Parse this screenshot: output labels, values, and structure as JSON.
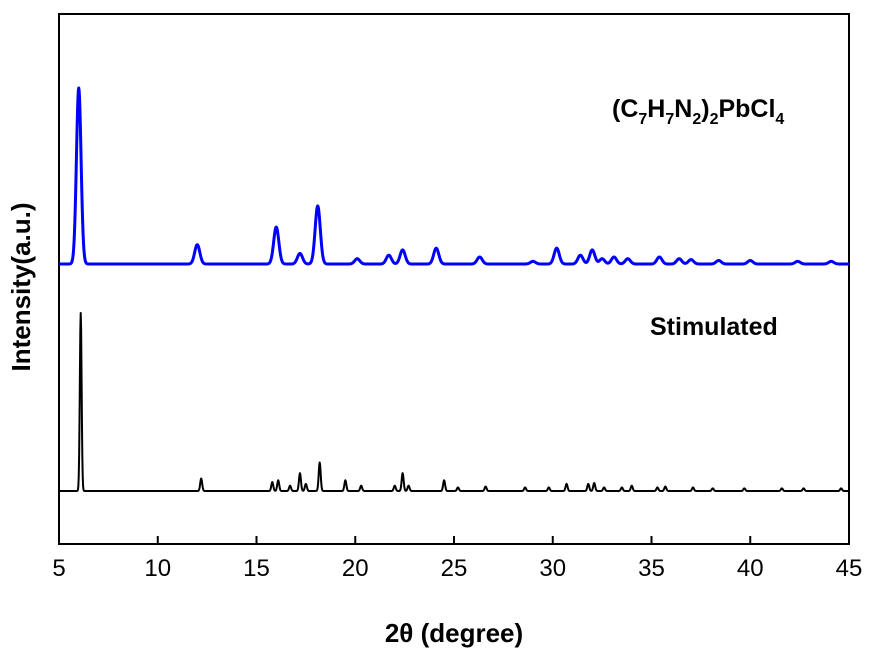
{
  "chart_data": {
    "type": "line",
    "title": "",
    "xlabel": "2θ (degree)",
    "ylabel": "Intensity(a.u.)",
    "xlim": [
      5,
      45
    ],
    "x_ticks": [
      5,
      10,
      15,
      20,
      25,
      30,
      35,
      40,
      45
    ],
    "y_ticks_shown": false,
    "grid": false,
    "legend": "none",
    "annotations": {
      "top_label_parts": [
        "(C",
        "7",
        "H",
        "7",
        "N",
        "2",
        ")",
        "2",
        "PbCl",
        "4"
      ],
      "bottom_label": "Stimulated"
    },
    "series": [
      {
        "color": "#0000ff",
        "baseline": 0.0,
        "peaks": [
          {
            "x": 6.0,
            "h": 1.0
          },
          {
            "x": 12.0,
            "h": 0.11
          },
          {
            "x": 16.0,
            "h": 0.21
          },
          {
            "x": 17.2,
            "h": 0.06
          },
          {
            "x": 18.1,
            "h": 0.33
          },
          {
            "x": 20.1,
            "h": 0.03
          },
          {
            "x": 21.7,
            "h": 0.05
          },
          {
            "x": 22.4,
            "h": 0.08
          },
          {
            "x": 24.1,
            "h": 0.09
          },
          {
            "x": 26.3,
            "h": 0.04
          },
          {
            "x": 29.0,
            "h": 0.015
          },
          {
            "x": 30.2,
            "h": 0.09
          },
          {
            "x": 31.4,
            "h": 0.05
          },
          {
            "x": 32.0,
            "h": 0.08
          },
          {
            "x": 32.5,
            "h": 0.03
          },
          {
            "x": 33.1,
            "h": 0.04
          },
          {
            "x": 33.8,
            "h": 0.03
          },
          {
            "x": 35.4,
            "h": 0.04
          },
          {
            "x": 36.4,
            "h": 0.03
          },
          {
            "x": 37.0,
            "h": 0.025
          },
          {
            "x": 38.4,
            "h": 0.02
          },
          {
            "x": 40.0,
            "h": 0.02
          },
          {
            "x": 42.4,
            "h": 0.015
          },
          {
            "x": 44.1,
            "h": 0.015
          }
        ]
      },
      {
        "color": "#000000",
        "baseline": 0.0,
        "peaks": [
          {
            "x": 6.1,
            "h": 1.0
          },
          {
            "x": 12.2,
            "h": 0.07
          },
          {
            "x": 15.8,
            "h": 0.05
          },
          {
            "x": 16.1,
            "h": 0.06
          },
          {
            "x": 16.7,
            "h": 0.03
          },
          {
            "x": 17.2,
            "h": 0.1
          },
          {
            "x": 17.5,
            "h": 0.04
          },
          {
            "x": 18.2,
            "h": 0.16
          },
          {
            "x": 19.5,
            "h": 0.06
          },
          {
            "x": 20.3,
            "h": 0.03
          },
          {
            "x": 22.0,
            "h": 0.03
          },
          {
            "x": 22.4,
            "h": 0.1
          },
          {
            "x": 22.7,
            "h": 0.03
          },
          {
            "x": 24.5,
            "h": 0.06
          },
          {
            "x": 25.2,
            "h": 0.02
          },
          {
            "x": 26.6,
            "h": 0.025
          },
          {
            "x": 28.6,
            "h": 0.02
          },
          {
            "x": 29.8,
            "h": 0.02
          },
          {
            "x": 30.7,
            "h": 0.04
          },
          {
            "x": 31.8,
            "h": 0.04
          },
          {
            "x": 32.1,
            "h": 0.045
          },
          {
            "x": 32.6,
            "h": 0.02
          },
          {
            "x": 33.5,
            "h": 0.02
          },
          {
            "x": 34.0,
            "h": 0.03
          },
          {
            "x": 35.3,
            "h": 0.02
          },
          {
            "x": 35.7,
            "h": 0.025
          },
          {
            "x": 37.1,
            "h": 0.02
          },
          {
            "x": 38.1,
            "h": 0.015
          },
          {
            "x": 39.7,
            "h": 0.015
          },
          {
            "x": 41.6,
            "h": 0.015
          },
          {
            "x": 42.7,
            "h": 0.015
          },
          {
            "x": 44.6,
            "h": 0.015
          }
        ]
      }
    ]
  }
}
